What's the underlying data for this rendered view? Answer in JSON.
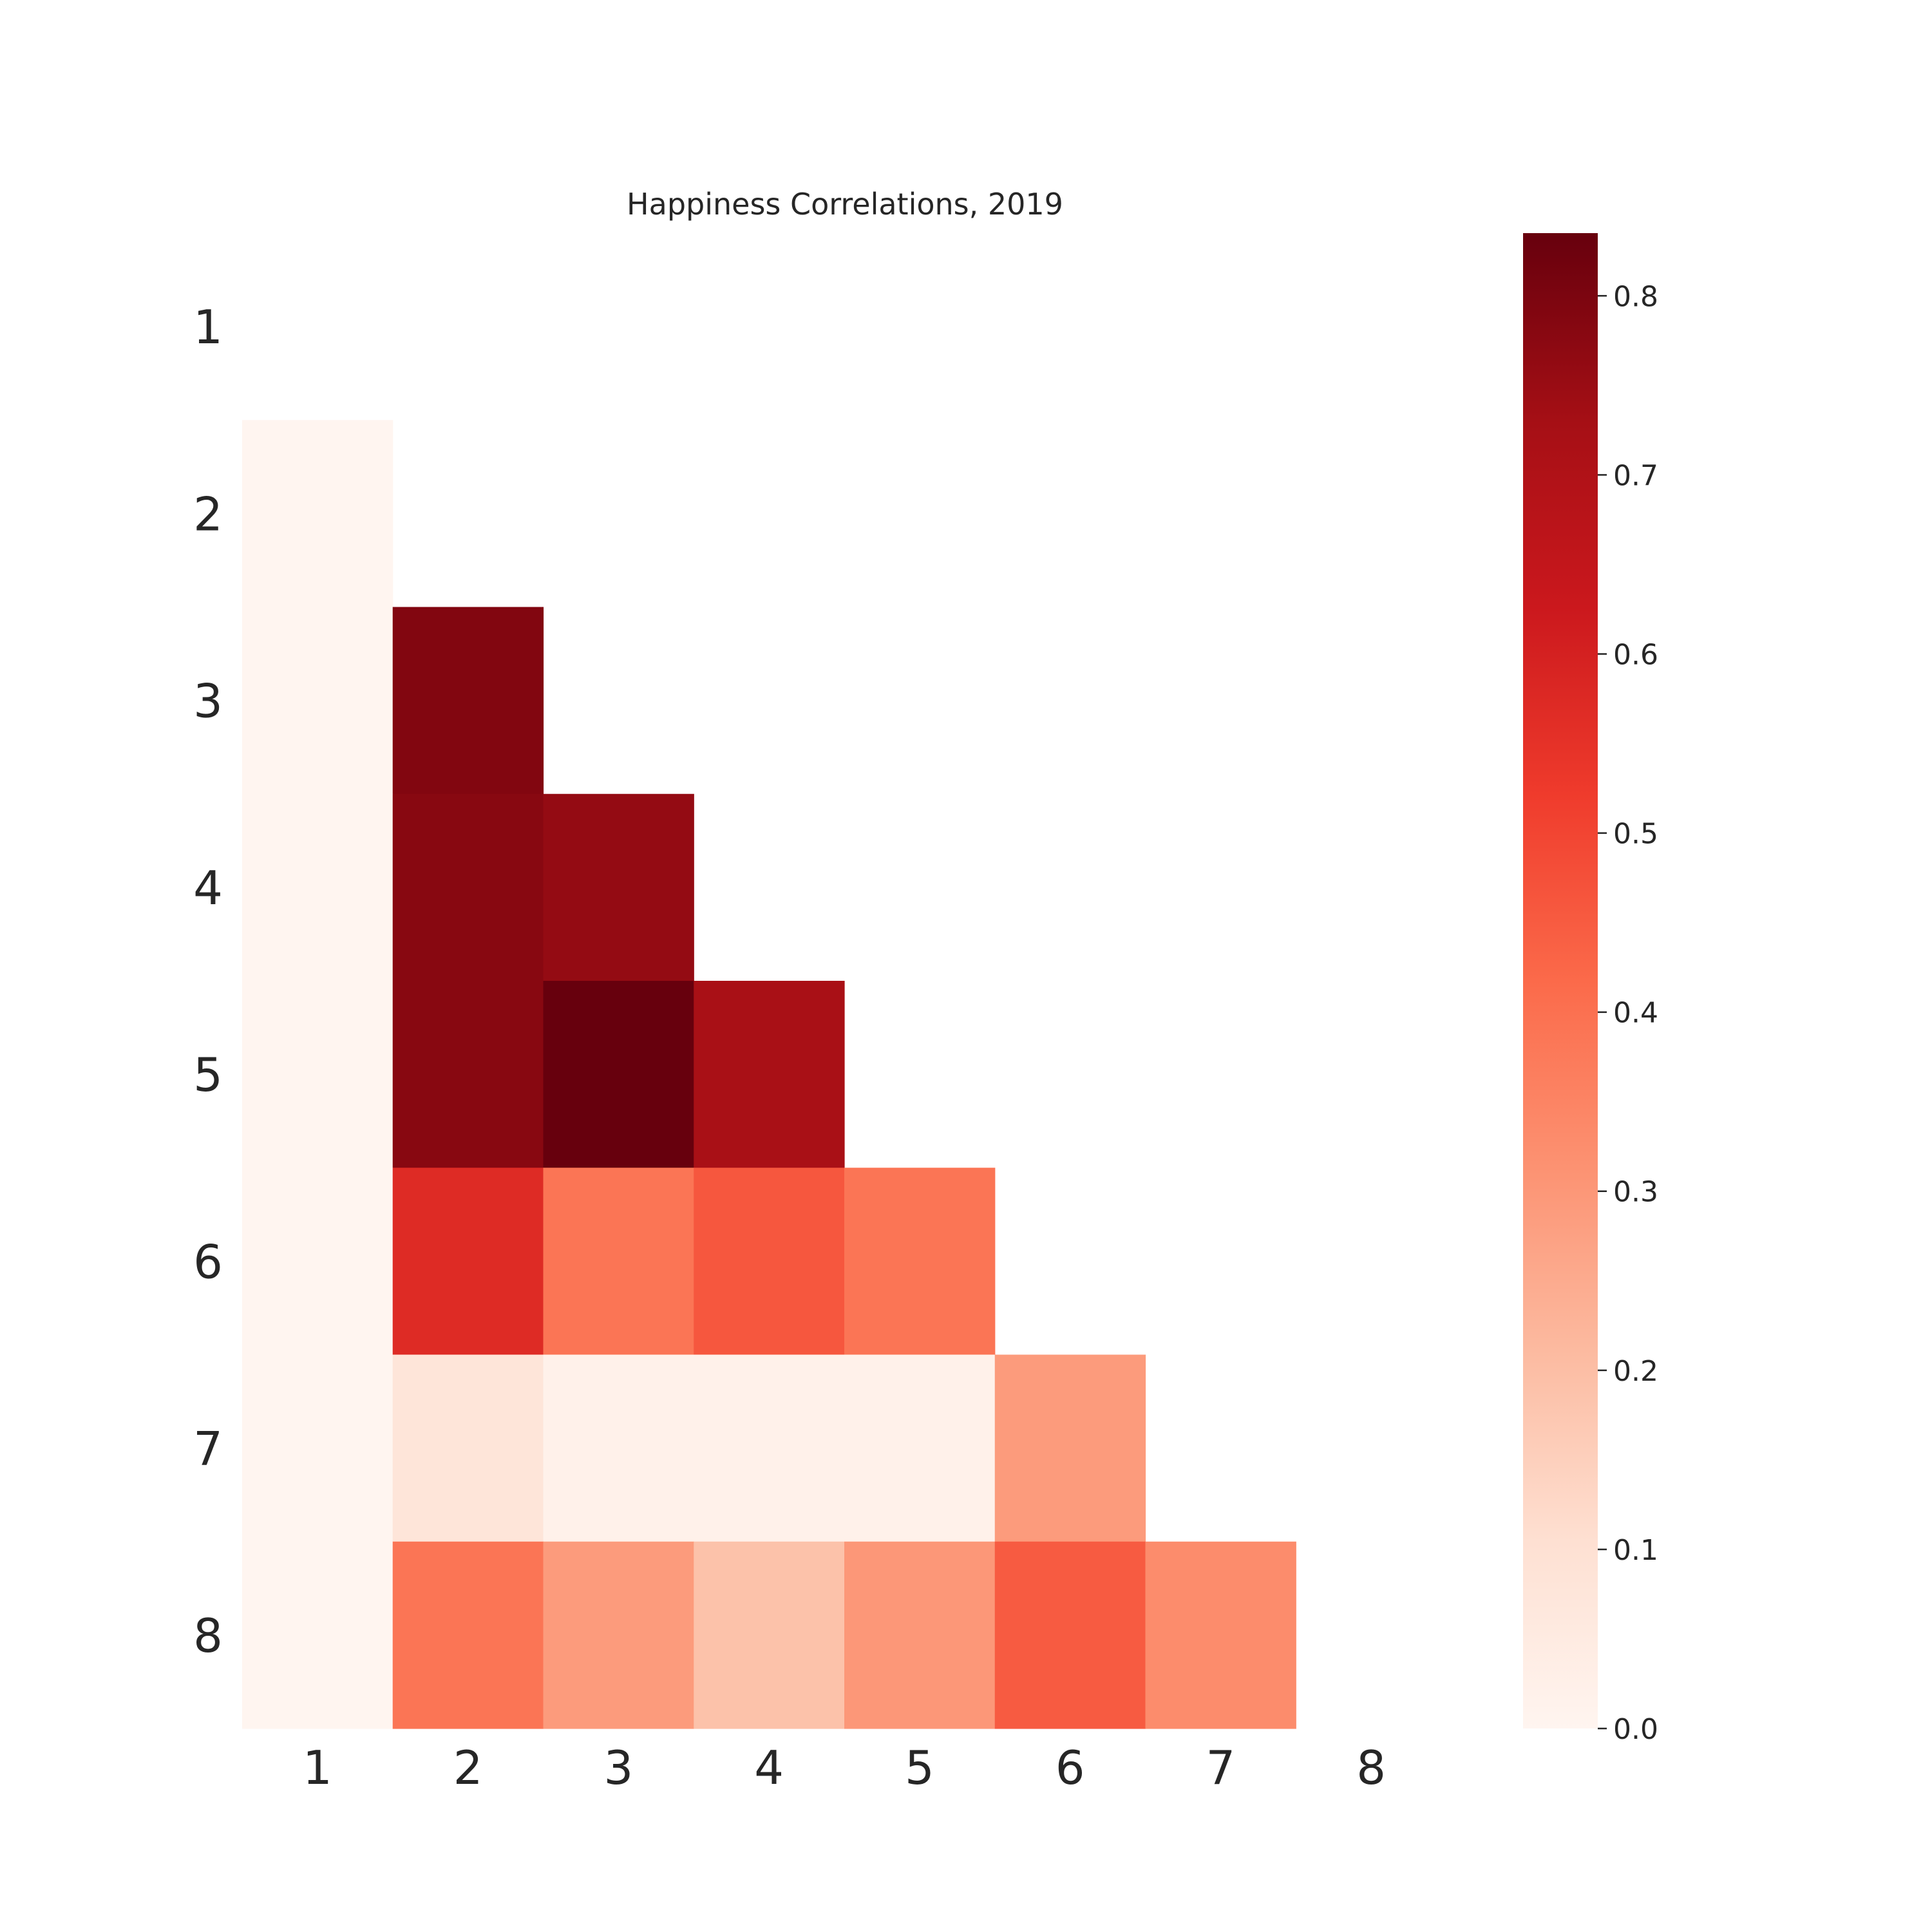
{
  "chart_data": {
    "type": "heatmap",
    "title": "Happiness Correlations, 2019",
    "xlabel": "",
    "ylabel": "",
    "x_categories": [
      "1",
      "2",
      "3",
      "4",
      "5",
      "6",
      "7",
      "8"
    ],
    "y_categories": [
      "1",
      "2",
      "3",
      "4",
      "5",
      "6",
      "7",
      "8"
    ],
    "mask": "upper triangle including diagonal",
    "values": [
      [
        null,
        null,
        null,
        null,
        null,
        null,
        null,
        null
      ],
      [
        0.0,
        null,
        null,
        null,
        null,
        null,
        null,
        null
      ],
      [
        0.0,
        0.79,
        null,
        null,
        null,
        null,
        null,
        null
      ],
      [
        0.0,
        0.78,
        0.76,
        null,
        null,
        null,
        null,
        null
      ],
      [
        0.0,
        0.78,
        0.84,
        0.72,
        null,
        null,
        null,
        null
      ],
      [
        0.0,
        0.57,
        0.39,
        0.46,
        0.39,
        null,
        null,
        null
      ],
      [
        0.0,
        0.08,
        0.02,
        0.02,
        0.02,
        0.29,
        null,
        null
      ],
      [
        0.0,
        0.39,
        0.29,
        0.19,
        0.3,
        0.45,
        0.33,
        null
      ]
    ],
    "colormap": "Reds",
    "colorbar": {
      "range": [
        0.0,
        0.835
      ],
      "ticks": [
        "0.0",
        "0.1",
        "0.2",
        "0.3",
        "0.4",
        "0.5",
        "0.6",
        "0.7",
        "0.8"
      ],
      "position": "right"
    },
    "grid": false
  }
}
